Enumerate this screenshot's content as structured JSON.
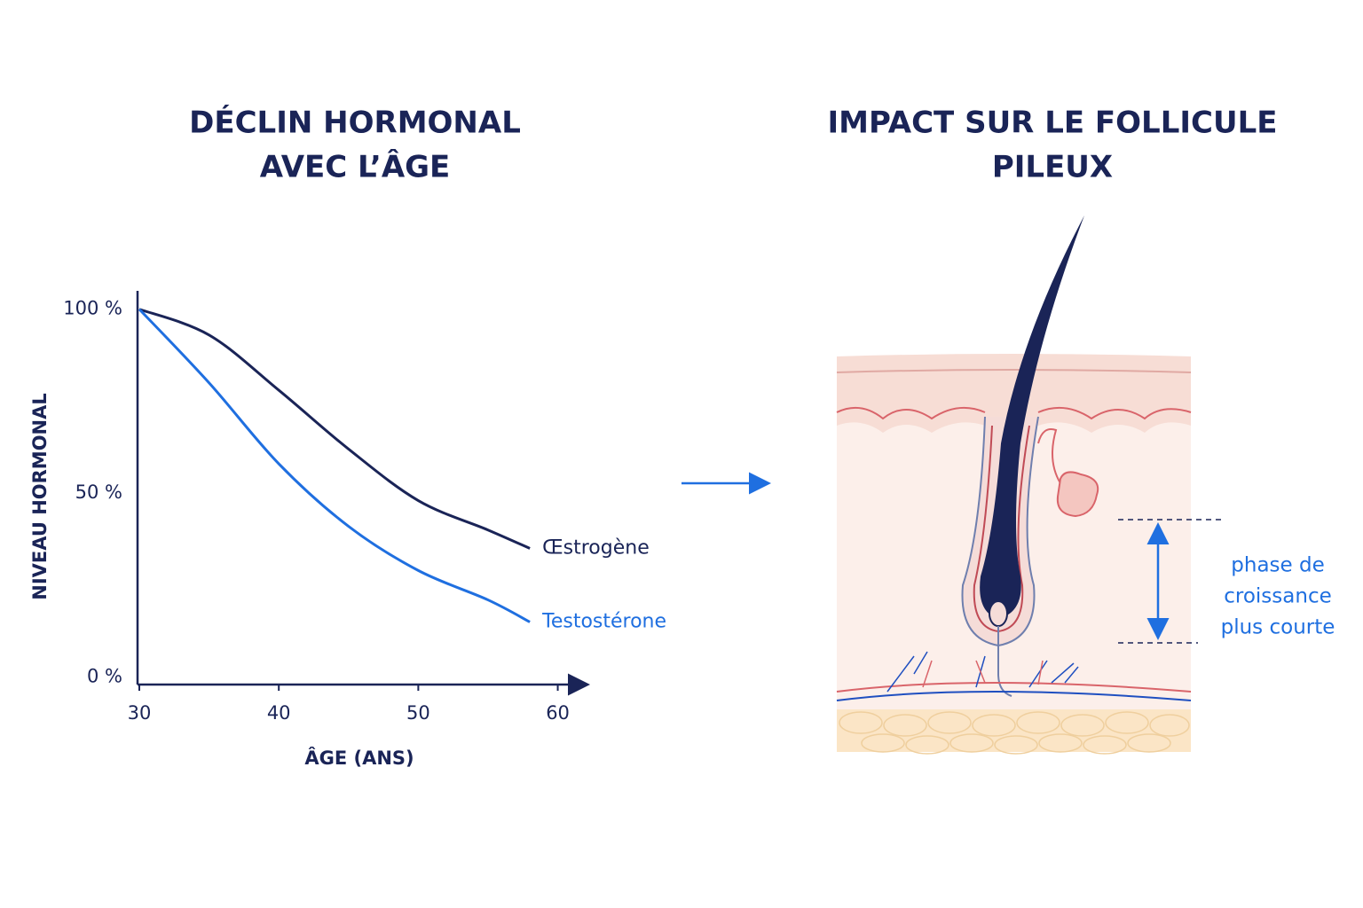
{
  "chart_data": {
    "type": "line",
    "title": [
      "DÉCLIN HORMONAL",
      "AVEC L’ÂGE"
    ],
    "y_label": "NIVEAU HORMONAL",
    "x_label": "ÂGE (ANS)",
    "x": [
      30,
      35,
      40,
      45,
      50,
      55,
      58
    ],
    "xlim": [
      30,
      62
    ],
    "xticks": [
      30,
      40,
      50,
      60
    ],
    "ylim": [
      -2,
      105
    ],
    "yticks": [
      {
        "value": 0,
        "label": "0 %"
      },
      {
        "value": 50,
        "label": "50 %"
      },
      {
        "value": 100,
        "label": "100 %"
      }
    ],
    "grid": false,
    "series": [
      {
        "name": "Œstrogène",
        "color": "#1a2457",
        "values": [
          100,
          93,
          78,
          62,
          48,
          40,
          35
        ]
      },
      {
        "name": "Testostérone",
        "color": "#1f6fe0",
        "values": [
          100,
          80,
          58,
          41,
          29,
          21,
          15
        ]
      }
    ]
  },
  "diagram": {
    "title": [
      "IMPACT SUR LE FOLLICULE",
      "PILEUX"
    ],
    "annotation": [
      "phase de",
      "croissance",
      "plus courte"
    ]
  }
}
